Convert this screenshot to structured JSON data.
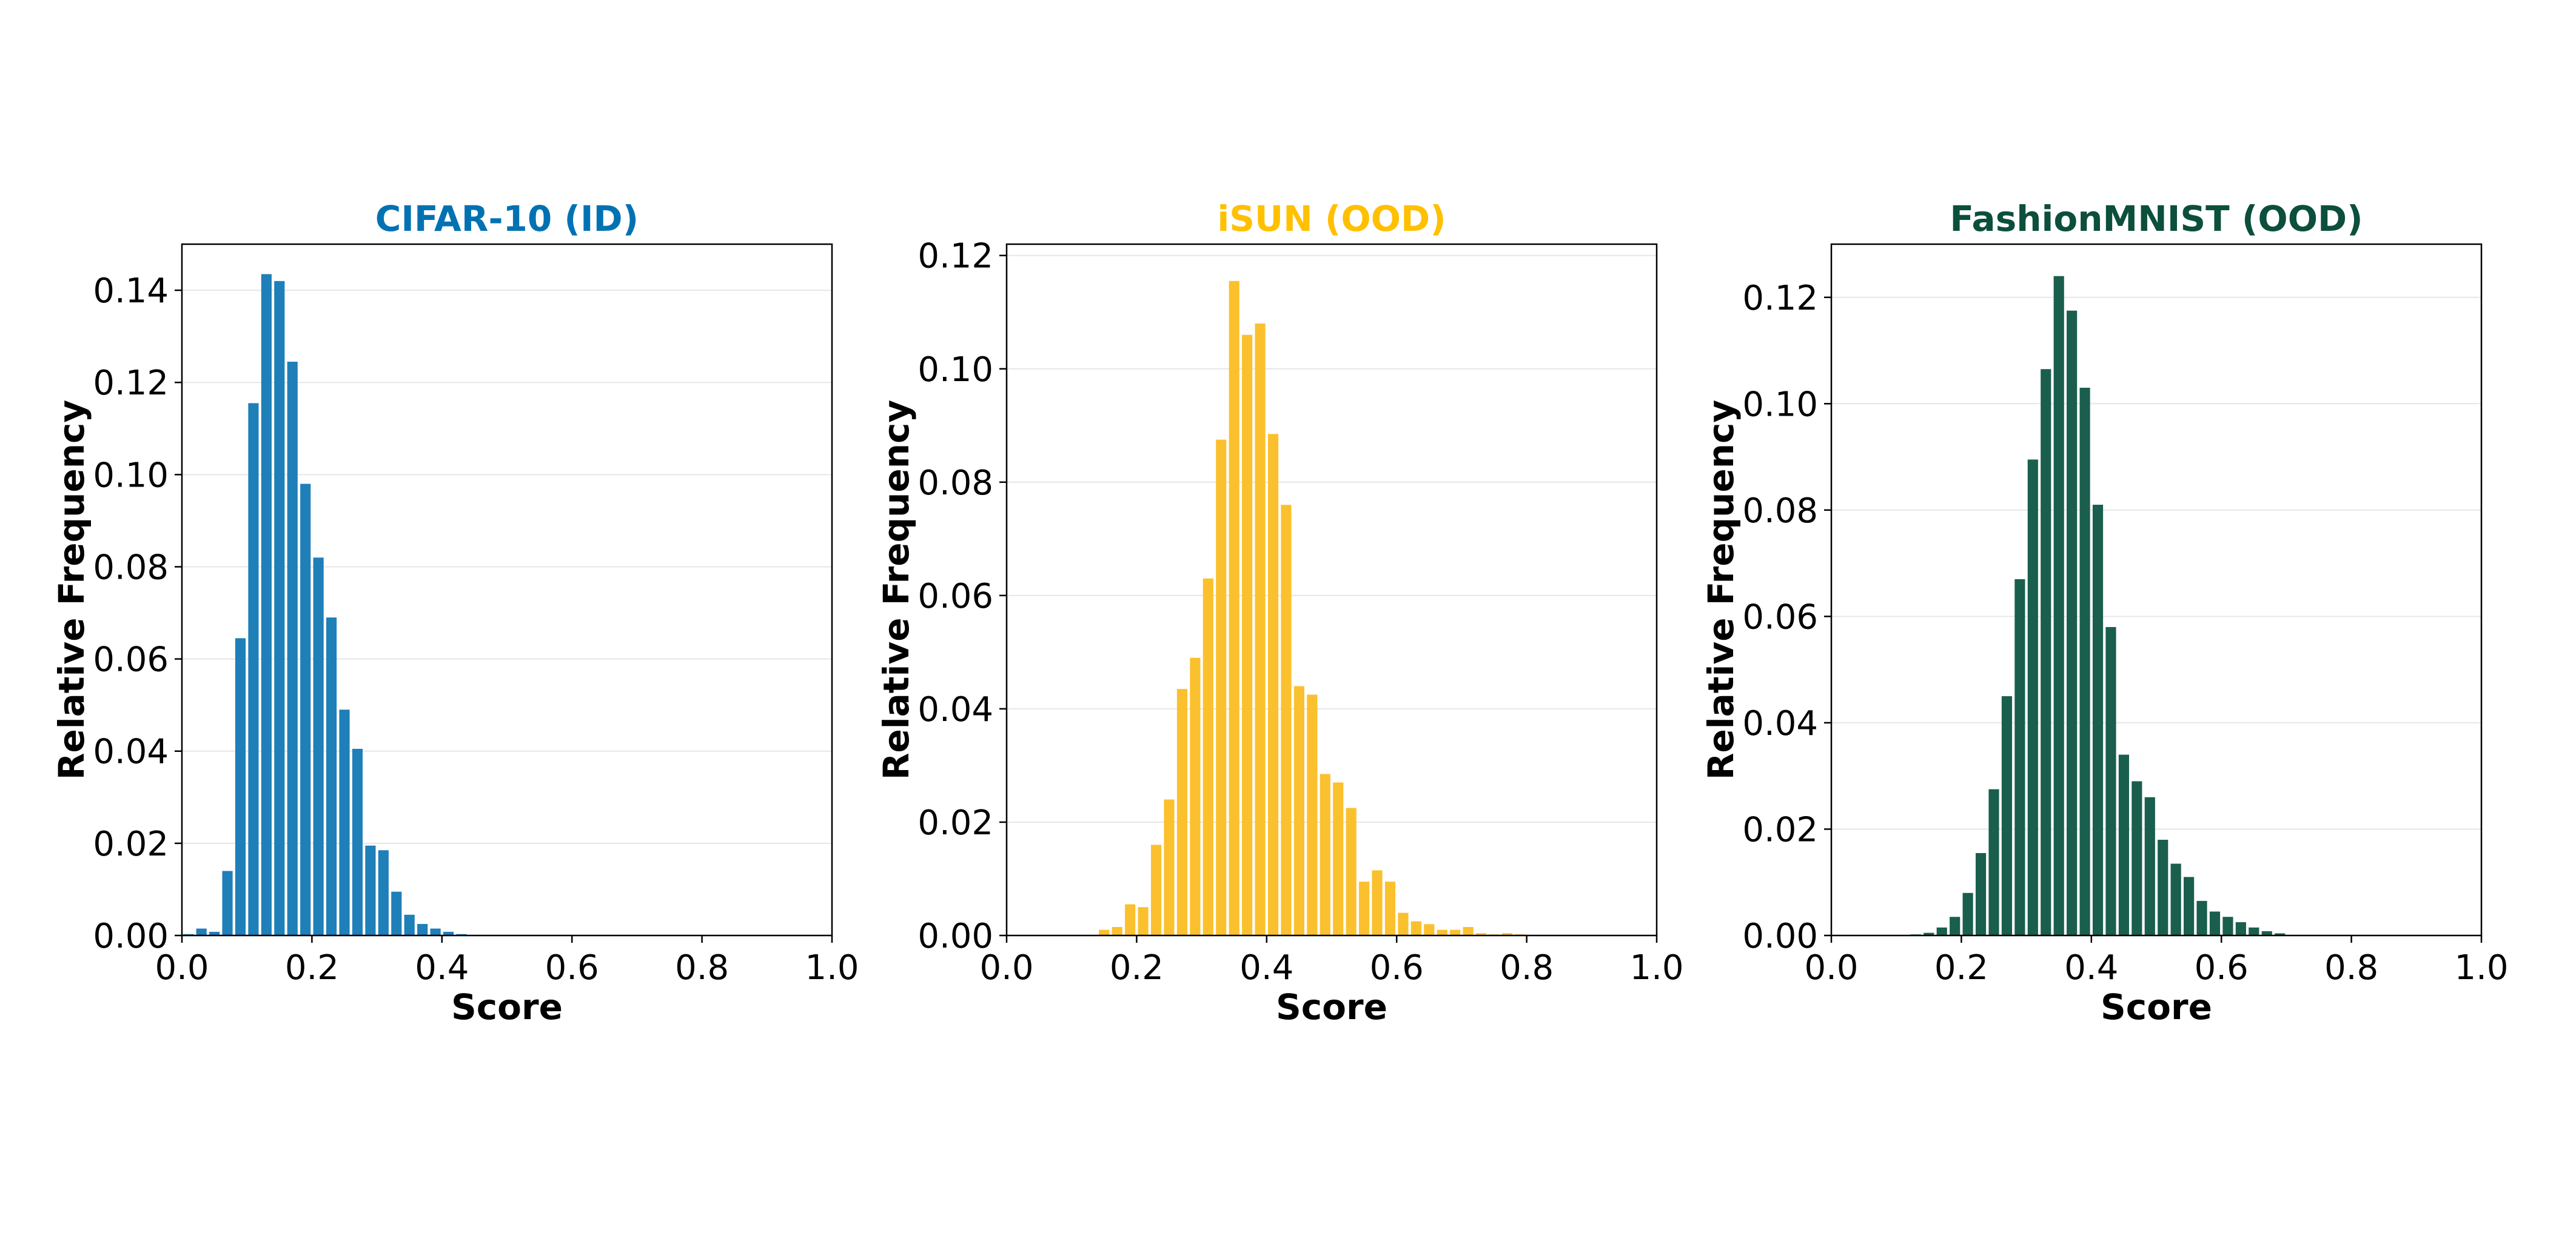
{
  "chart_data": [
    {
      "type": "bar",
      "title": "CIFAR-10 (ID)",
      "title_color": "#0072B2",
      "bar_color": "#1f7fb8",
      "xlabel": "Score",
      "ylabel": "Relative Frequency",
      "xlim": [
        0.0,
        1.0
      ],
      "ylim": [
        0.0,
        0.15
      ],
      "xticks": [
        "0.0",
        "0.2",
        "0.4",
        "0.6",
        "0.8",
        "1.0"
      ],
      "yticks": [
        "0.00",
        "0.02",
        "0.04",
        "0.06",
        "0.08",
        "0.10",
        "0.12",
        "0.14"
      ],
      "bin_width": 0.02,
      "x": [
        0.01,
        0.03,
        0.05,
        0.07,
        0.09,
        0.11,
        0.13,
        0.15,
        0.17,
        0.19,
        0.21,
        0.23,
        0.25,
        0.27,
        0.29,
        0.31,
        0.33,
        0.35,
        0.37,
        0.39,
        0.41,
        0.43
      ],
      "values": [
        0.0003,
        0.0015,
        0.0008,
        0.014,
        0.0645,
        0.1155,
        0.1435,
        0.142,
        0.1245,
        0.098,
        0.082,
        0.069,
        0.049,
        0.0405,
        0.0195,
        0.0185,
        0.0095,
        0.0045,
        0.0025,
        0.0015,
        0.0008,
        0.0003
      ],
      "grid": "y"
    },
    {
      "type": "bar",
      "title": "iSUN (OOD)",
      "title_color": "#FFC000",
      "bar_color": "#fbc02d",
      "xlabel": "Score",
      "ylabel": "Relative Frequency",
      "xlim": [
        0.0,
        1.0
      ],
      "ylim": [
        0.0,
        0.122
      ],
      "xticks": [
        "0.0",
        "0.2",
        "0.4",
        "0.6",
        "0.8",
        "1.0"
      ],
      "yticks": [
        "0.00",
        "0.02",
        "0.04",
        "0.06",
        "0.08",
        "0.10",
        "0.12"
      ],
      "bin_width": 0.02,
      "x": [
        0.15,
        0.17,
        0.19,
        0.21,
        0.23,
        0.25,
        0.27,
        0.29,
        0.31,
        0.33,
        0.35,
        0.37,
        0.39,
        0.41,
        0.43,
        0.45,
        0.47,
        0.49,
        0.51,
        0.53,
        0.55,
        0.57,
        0.59,
        0.61,
        0.63,
        0.65,
        0.67,
        0.69,
        0.71,
        0.73,
        0.75,
        0.77,
        0.79
      ],
      "values": [
        0.001,
        0.0015,
        0.0055,
        0.005,
        0.016,
        0.024,
        0.0435,
        0.049,
        0.063,
        0.0875,
        0.1155,
        0.106,
        0.108,
        0.0885,
        0.076,
        0.044,
        0.0425,
        0.0285,
        0.027,
        0.0225,
        0.0095,
        0.0115,
        0.0095,
        0.004,
        0.0025,
        0.002,
        0.001,
        0.001,
        0.0015,
        0.0004,
        0.0002,
        0.0004,
        0.0002
      ],
      "grid": "y"
    },
    {
      "type": "bar",
      "title": "FashionMNIST (OOD)",
      "title_color": "#0B4F3C",
      "bar_color": "#1a5e4e",
      "xlabel": "Score",
      "ylabel": "Relative Frequency",
      "xlim": [
        0.0,
        1.0
      ],
      "ylim": [
        0.0,
        0.13
      ],
      "xticks": [
        "0.0",
        "0.2",
        "0.4",
        "0.6",
        "0.8",
        "1.0"
      ],
      "yticks": [
        "0.00",
        "0.02",
        "0.04",
        "0.06",
        "0.08",
        "0.10",
        "0.12"
      ],
      "bin_width": 0.02,
      "x": [
        0.13,
        0.15,
        0.17,
        0.19,
        0.21,
        0.23,
        0.25,
        0.27,
        0.29,
        0.31,
        0.33,
        0.35,
        0.37,
        0.39,
        0.41,
        0.43,
        0.45,
        0.47,
        0.49,
        0.51,
        0.53,
        0.55,
        0.57,
        0.59,
        0.61,
        0.63,
        0.65,
        0.67,
        0.69,
        0.71
      ],
      "values": [
        0.0002,
        0.0005,
        0.0015,
        0.0035,
        0.008,
        0.0155,
        0.0275,
        0.045,
        0.067,
        0.0895,
        0.1065,
        0.124,
        0.1175,
        0.103,
        0.081,
        0.058,
        0.034,
        0.029,
        0.026,
        0.018,
        0.0135,
        0.011,
        0.0065,
        0.0045,
        0.0035,
        0.0025,
        0.0015,
        0.0008,
        0.0004,
        0.0001
      ],
      "grid": "y"
    }
  ]
}
